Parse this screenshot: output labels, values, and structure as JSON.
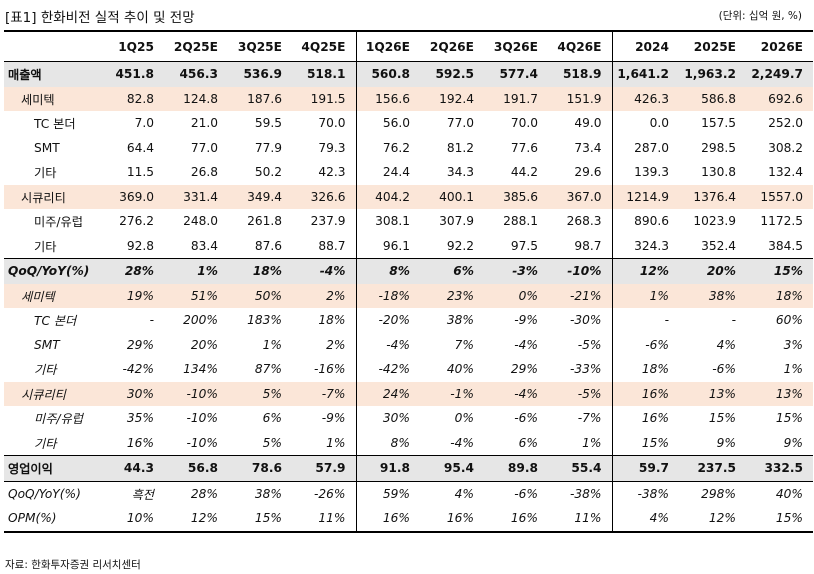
{
  "header": {
    "title": "[표1] 한화비전 실적 추이 및 전망",
    "unit": "(단위: 십억 원, %)"
  },
  "columns": [
    "",
    "1Q25",
    "2Q25E",
    "3Q25E",
    "4Q25E",
    "1Q26E",
    "2Q26E",
    "3Q26E",
    "4Q26E",
    "2024",
    "2025E",
    "2026E"
  ],
  "rows": [
    [
      "매출액",
      "451.8",
      "456.3",
      "536.9",
      "518.1",
      "560.8",
      "592.5",
      "577.4",
      "518.9",
      "1,641.2",
      "1,963.2",
      "2,249.7"
    ],
    [
      "세미텍",
      "82.8",
      "124.8",
      "187.6",
      "191.5",
      "156.6",
      "192.4",
      "191.7",
      "151.9",
      "426.3",
      "586.8",
      "692.6"
    ],
    [
      "TC 본더",
      "7.0",
      "21.0",
      "59.5",
      "70.0",
      "56.0",
      "77.0",
      "70.0",
      "49.0",
      "0.0",
      "157.5",
      "252.0"
    ],
    [
      "SMT",
      "64.4",
      "77.0",
      "77.9",
      "79.3",
      "76.2",
      "81.2",
      "77.6",
      "73.4",
      "287.0",
      "298.5",
      "308.2"
    ],
    [
      "기타",
      "11.5",
      "26.8",
      "50.2",
      "42.3",
      "24.4",
      "34.3",
      "44.2",
      "29.6",
      "139.3",
      "130.8",
      "132.4"
    ],
    [
      "시큐리티",
      "369.0",
      "331.4",
      "349.4",
      "326.6",
      "404.2",
      "400.1",
      "385.6",
      "367.0",
      "1214.9",
      "1376.4",
      "1557.0"
    ],
    [
      "미주/유럽",
      "276.2",
      "248.0",
      "261.8",
      "237.9",
      "308.1",
      "307.9",
      "288.1",
      "268.3",
      "890.6",
      "1023.9",
      "1172.5"
    ],
    [
      "기타",
      "92.8",
      "83.4",
      "87.6",
      "88.7",
      "96.1",
      "92.2",
      "97.5",
      "98.7",
      "324.3",
      "352.4",
      "384.5"
    ],
    [
      "QoQ/YoY(%)",
      "28%",
      "1%",
      "18%",
      "-4%",
      "8%",
      "6%",
      "-3%",
      "-10%",
      "12%",
      "20%",
      "15%"
    ],
    [
      "세미텍",
      "19%",
      "51%",
      "50%",
      "2%",
      "-18%",
      "23%",
      "0%",
      "-21%",
      "1%",
      "38%",
      "18%"
    ],
    [
      "TC 본더",
      "-",
      "200%",
      "183%",
      "18%",
      "-20%",
      "38%",
      "-9%",
      "-30%",
      "-",
      "-",
      "60%"
    ],
    [
      "SMT",
      "29%",
      "20%",
      "1%",
      "2%",
      "-4%",
      "7%",
      "-4%",
      "-5%",
      "-6%",
      "4%",
      "3%"
    ],
    [
      "기타",
      "-42%",
      "134%",
      "87%",
      "-16%",
      "-42%",
      "40%",
      "29%",
      "-33%",
      "18%",
      "-6%",
      "1%"
    ],
    [
      "시큐리티",
      "30%",
      "-10%",
      "5%",
      "-7%",
      "24%",
      "-1%",
      "-4%",
      "-5%",
      "16%",
      "13%",
      "13%"
    ],
    [
      "미주/유럽",
      "35%",
      "-10%",
      "6%",
      "-9%",
      "30%",
      "0%",
      "-6%",
      "-7%",
      "16%",
      "15%",
      "15%"
    ],
    [
      "기타",
      "16%",
      "-10%",
      "5%",
      "1%",
      "8%",
      "-4%",
      "6%",
      "1%",
      "15%",
      "9%",
      "9%"
    ],
    [
      "영업이익",
      "44.3",
      "56.8",
      "78.6",
      "57.9",
      "91.8",
      "95.4",
      "89.8",
      "55.4",
      "59.7",
      "237.5",
      "332.5"
    ],
    [
      "QoQ/YoY(%)",
      "흑전",
      "28%",
      "38%",
      "-26%",
      "59%",
      "4%",
      "-6%",
      "-38%",
      "-38%",
      "298%",
      "40%"
    ],
    [
      "OPM(%)",
      "10%",
      "12%",
      "15%",
      "11%",
      "16%",
      "16%",
      "16%",
      "11%",
      "4%",
      "12%",
      "15%"
    ]
  ],
  "source": "자료: 한화투자증권 리서치센터"
}
